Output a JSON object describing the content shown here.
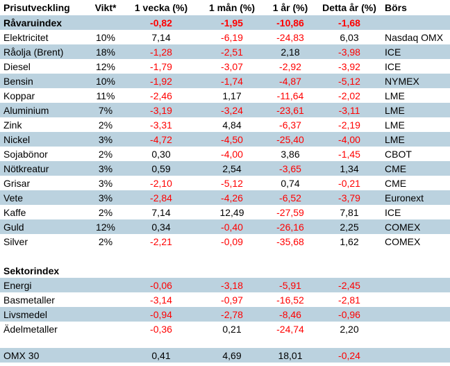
{
  "colors": {
    "row_shade": "#bbd2df",
    "negative": "#ff0000",
    "text": "#000000",
    "background": "#ffffff"
  },
  "table": {
    "columns": [
      "Prisutveckling",
      "Vikt*",
      "1 vecka (%)",
      "1 mån (%)",
      "1 år (%)",
      "Detta år (%)",
      "Börs"
    ],
    "rows": [
      {
        "label": "Råvaruindex",
        "weight": "",
        "week": "-0,82",
        "month": "-1,95",
        "year": "-10,86",
        "ytd": "-1,68",
        "exchange": "",
        "shaded": true,
        "bold": true
      },
      {
        "label": "Elektricitet",
        "weight": "10%",
        "week": "7,14",
        "month": "-6,19",
        "year": "-24,83",
        "ytd": "6,03",
        "exchange": "Nasdaq OMX",
        "shaded": false,
        "bold": false
      },
      {
        "label": "Råolja (Brent)",
        "weight": "18%",
        "week": "-1,28",
        "month": "-2,51",
        "year": "2,18",
        "ytd": "-3,98",
        "exchange": "ICE",
        "shaded": true,
        "bold": false
      },
      {
        "label": "Diesel",
        "weight": "12%",
        "week": "-1,79",
        "month": "-3,07",
        "year": "-2,92",
        "ytd": "-3,92",
        "exchange": "ICE",
        "shaded": false,
        "bold": false
      },
      {
        "label": "Bensin",
        "weight": "10%",
        "week": "-1,92",
        "month": "-1,74",
        "year": "-4,87",
        "ytd": "-5,12",
        "exchange": "NYMEX",
        "shaded": true,
        "bold": false
      },
      {
        "label": "Koppar",
        "weight": "11%",
        "week": "-2,46",
        "month": "1,17",
        "year": "-11,64",
        "ytd": "-2,02",
        "exchange": "LME",
        "shaded": false,
        "bold": false
      },
      {
        "label": "Aluminium",
        "weight": "7%",
        "week": "-3,19",
        "month": "-3,24",
        "year": "-23,61",
        "ytd": "-3,11",
        "exchange": "LME",
        "shaded": true,
        "bold": false
      },
      {
        "label": "Zink",
        "weight": "2%",
        "week": "-3,31",
        "month": "4,84",
        "year": "-6,37",
        "ytd": "-2,19",
        "exchange": "LME",
        "shaded": false,
        "bold": false
      },
      {
        "label": "Nickel",
        "weight": "3%",
        "week": "-4,72",
        "month": "-4,50",
        "year": "-25,40",
        "ytd": "-4,00",
        "exchange": "LME",
        "shaded": true,
        "bold": false
      },
      {
        "label": "Sojabönor",
        "weight": "2%",
        "week": "0,30",
        "month": "-4,00",
        "year": "3,86",
        "ytd": "-1,45",
        "exchange": "CBOT",
        "shaded": false,
        "bold": false
      },
      {
        "label": "Nötkreatur",
        "weight": "3%",
        "week": "0,59",
        "month": "2,54",
        "year": "-3,65",
        "ytd": "1,34",
        "exchange": "CME",
        "shaded": true,
        "bold": false
      },
      {
        "label": "Grisar",
        "weight": "3%",
        "week": "-2,10",
        "month": "-5,12",
        "year": "0,74",
        "ytd": "-0,21",
        "exchange": "CME",
        "shaded": false,
        "bold": false
      },
      {
        "label": "Vete",
        "weight": "3%",
        "week": "-2,84",
        "month": "-4,26",
        "year": "-6,52",
        "ytd": "-3,79",
        "exchange": "Euronext",
        "shaded": true,
        "bold": false
      },
      {
        "label": "Kaffe",
        "weight": "2%",
        "week": "7,14",
        "month": "12,49",
        "year": "-27,59",
        "ytd": "7,81",
        "exchange": "ICE",
        "shaded": false,
        "bold": false
      },
      {
        "label": "Guld",
        "weight": "12%",
        "week": "0,34",
        "month": "-0,40",
        "year": "-26,16",
        "ytd": "2,25",
        "exchange": "COMEX",
        "shaded": true,
        "bold": false
      },
      {
        "label": "Silver",
        "weight": "2%",
        "week": "-2,21",
        "month": "-0,09",
        "year": "-35,68",
        "ytd": "1,62",
        "exchange": "COMEX",
        "shaded": false,
        "bold": false
      },
      {
        "spacer": true,
        "height": 21
      },
      {
        "label": "Sektorindex",
        "weight": "",
        "week": "",
        "month": "",
        "year": "",
        "ytd": "",
        "exchange": "",
        "shaded": false,
        "bold": true
      },
      {
        "label": "Energi",
        "weight": "",
        "week": "-0,06",
        "month": "-3,18",
        "year": "-5,91",
        "ytd": "-2,45",
        "exchange": "",
        "shaded": true,
        "bold": false
      },
      {
        "label": "Basmetaller",
        "weight": "",
        "week": "-3,14",
        "month": "-0,97",
        "year": "-16,52",
        "ytd": "-2,81",
        "exchange": "",
        "shaded": false,
        "bold": false
      },
      {
        "label": "Livsmedel",
        "weight": "",
        "week": "-0,94",
        "month": "-2,78",
        "year": "-8,46",
        "ytd": "-0,96",
        "exchange": "",
        "shaded": true,
        "bold": false
      },
      {
        "label": "Ädelmetaller",
        "weight": "",
        "week": "-0,36",
        "month": "0,21",
        "year": "-24,74",
        "ytd": "2,20",
        "exchange": "",
        "shaded": false,
        "bold": false
      },
      {
        "spacer": true,
        "height": 17
      },
      {
        "label": "OMX 30",
        "weight": "",
        "week": "0,41",
        "month": "4,69",
        "year": "18,01",
        "ytd": "-0,24",
        "exchange": "",
        "shaded": true,
        "bold": false
      }
    ]
  }
}
